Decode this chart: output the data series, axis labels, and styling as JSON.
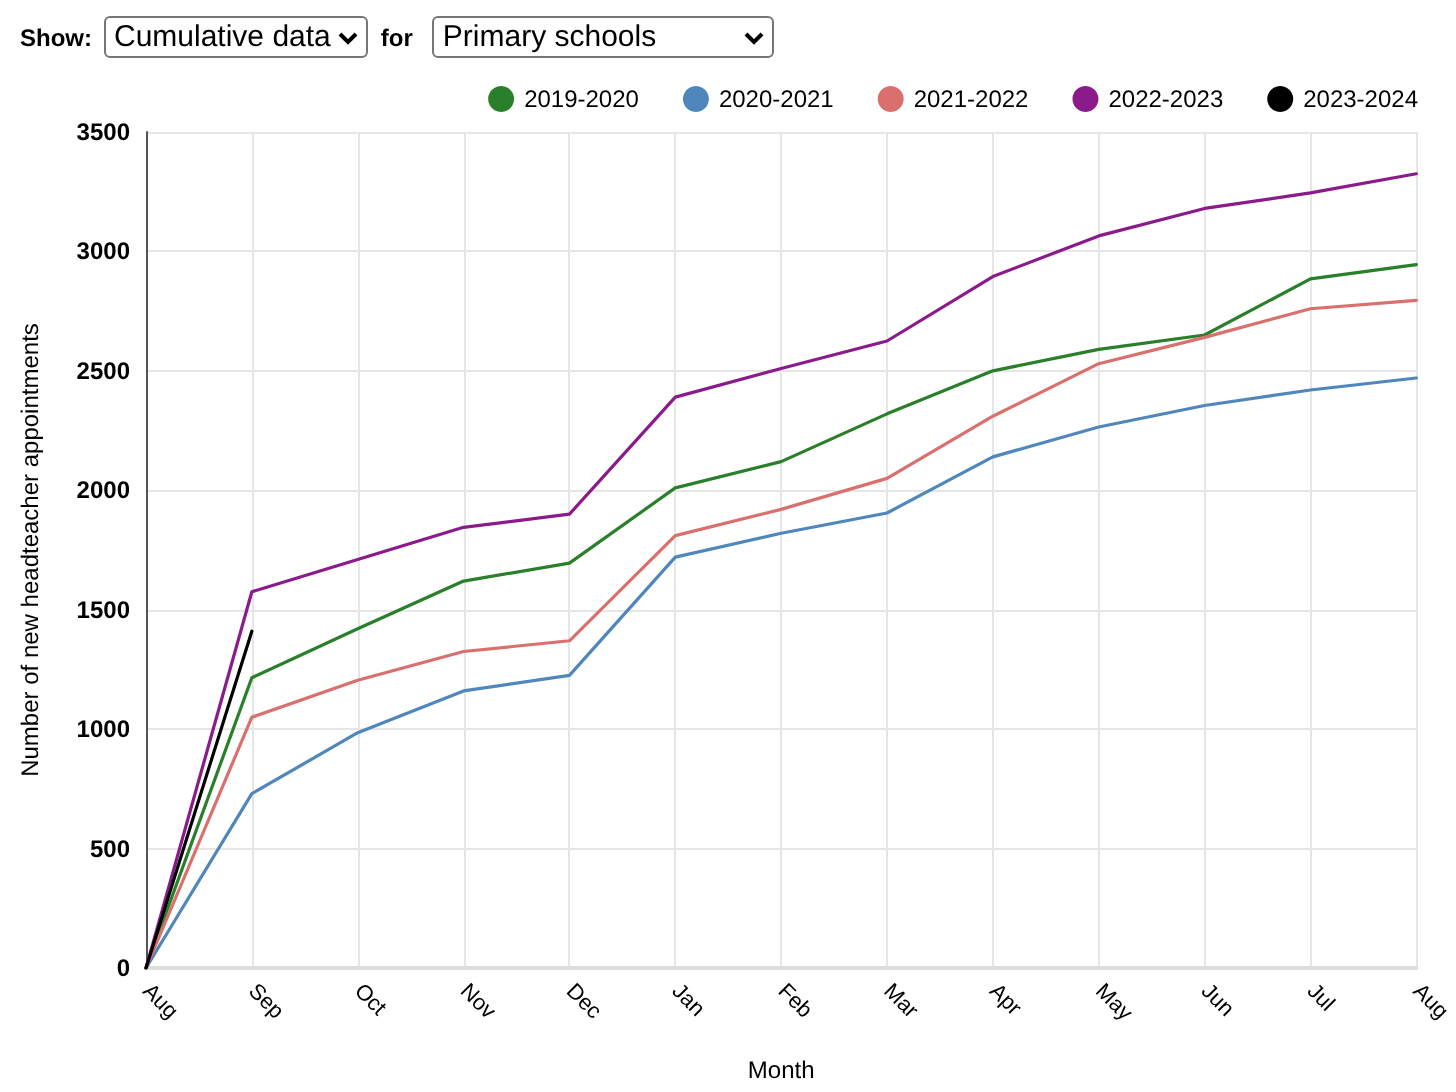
{
  "chart_data": {
    "type": "line",
    "xlabel": "Month",
    "ylabel": "Number of new headteacher appointments",
    "annotations": [
      "Show:",
      "Cumulative data",
      "for",
      "Primary schools"
    ],
    "categories": [
      "Aug",
      "Sep",
      "Oct",
      "Nov",
      "Dec",
      "Jan",
      "Feb",
      "Mar",
      "Apr",
      "May",
      "Jun",
      "Jul",
      "Aug"
    ],
    "series": [
      {
        "name": "2019-2020",
        "color": "#2a7f2a",
        "values": [
          0,
          1215,
          1420,
          1620,
          1695,
          2010,
          2120,
          2320,
          2500,
          2590,
          2650,
          2885,
          2945
        ]
      },
      {
        "name": "2020-2021",
        "color": "#4f87bd",
        "values": [
          0,
          730,
          985,
          1160,
          1225,
          1720,
          1820,
          1905,
          2140,
          2265,
          2355,
          2420,
          2470
        ]
      },
      {
        "name": "2021-2022",
        "color": "#d9706d",
        "values": [
          0,
          1050,
          1205,
          1325,
          1370,
          1810,
          1920,
          2050,
          2310,
          2530,
          2640,
          2760,
          2795
        ]
      },
      {
        "name": "2022-2023",
        "color": "#8b1a8b",
        "values": [
          0,
          1575,
          1710,
          1845,
          1900,
          2390,
          2510,
          2625,
          2895,
          3065,
          3180,
          3245,
          3325
        ]
      },
      {
        "name": "2023-2024",
        "color": "#000000",
        "values": [
          0,
          1410,
          null,
          null,
          null,
          null,
          null,
          null,
          null,
          null,
          null,
          null,
          null
        ]
      }
    ],
    "ylim": [
      0,
      3500
    ],
    "yticks": [
      0,
      500,
      1000,
      1500,
      2000,
      2500,
      3000,
      3500
    ],
    "grid": true,
    "legend": "top right",
    "marker": "none",
    "line_style": "solid"
  }
}
